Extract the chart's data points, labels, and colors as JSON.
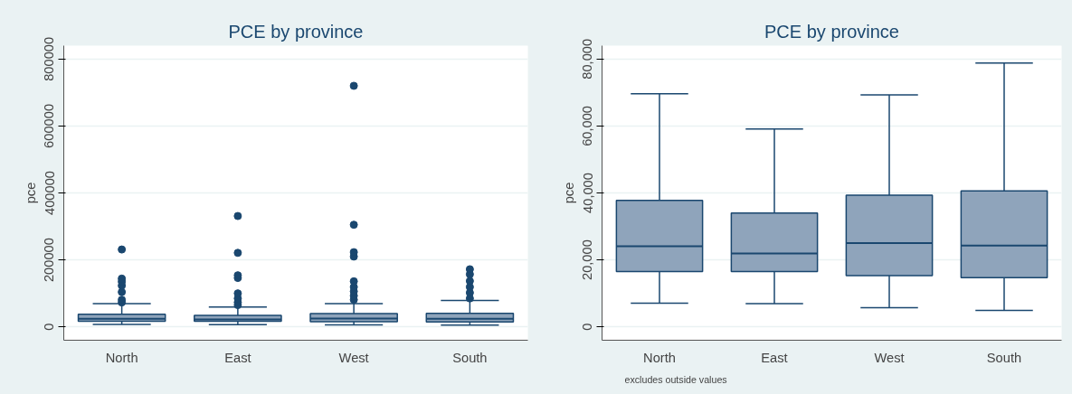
{
  "chart_data": [
    {
      "type": "box",
      "title": "PCE by province",
      "ylabel": "pce",
      "categories": [
        "North",
        "East",
        "West",
        "South"
      ],
      "boxes": [
        {
          "low": 7100,
          "q1": 16500,
          "median": 24100,
          "q3": 37800,
          "high": 69600,
          "outliers": [
            73000,
            81000,
            104000,
            123000,
            135000,
            144000,
            231000
          ]
        },
        {
          "low": 6900,
          "q1": 16500,
          "median": 21900,
          "q3": 34000,
          "high": 59100,
          "outliers": [
            65000,
            73000,
            85000,
            100000,
            146000,
            154000,
            221000,
            331000
          ]
        },
        {
          "low": 5700,
          "q1": 15300,
          "median": 25000,
          "q3": 39300,
          "high": 69300,
          "outliers": [
            81000,
            93000,
            106000,
            119000,
            136000,
            210000,
            223000,
            305000,
            720000
          ]
        },
        {
          "low": 4900,
          "q1": 14700,
          "median": 24300,
          "q3": 40600,
          "high": 78800,
          "outliers": [
            85000,
            102000,
            119000,
            137000,
            157000,
            172000
          ]
        }
      ],
      "color": "#8fa4bb",
      "ylim": [
        -40000,
        840000
      ],
      "yticks": [
        0,
        200000,
        400000,
        600000,
        800000
      ],
      "grid": "y"
    },
    {
      "type": "box",
      "title": "PCE by province",
      "ylabel": "pce",
      "categories": [
        "North",
        "East",
        "West",
        "South"
      ],
      "boxes": [
        {
          "low": 7100,
          "q1": 16500,
          "median": 24100,
          "q3": 37800,
          "high": 69600
        },
        {
          "low": 6900,
          "q1": 16500,
          "median": 21900,
          "q3": 34000,
          "high": 59100
        },
        {
          "low": 5700,
          "q1": 15300,
          "median": 25000,
          "q3": 39300,
          "high": 69300
        },
        {
          "low": 4900,
          "q1": 14700,
          "median": 24300,
          "q3": 40600,
          "high": 78800
        }
      ],
      "color": "#8fa4bb",
      "ylim": [
        -4000,
        84000
      ],
      "yticks": [
        {
          "value": 0,
          "label": "0"
        },
        {
          "value": 20000,
          "label": "20,000"
        },
        {
          "value": 40000,
          "label": "40,000"
        },
        {
          "value": 60000,
          "label": "60,000"
        },
        {
          "value": 80000,
          "label": "80,000"
        }
      ],
      "grid": "y",
      "annotations": [
        "excludes outside values"
      ]
    }
  ]
}
